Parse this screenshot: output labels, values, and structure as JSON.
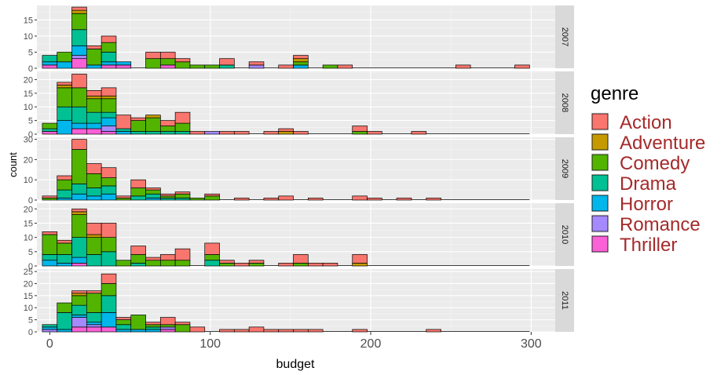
{
  "chart_data": {
    "type": "bar",
    "subtype": "stacked-histogram-faceted",
    "xlabel": "budget",
    "ylabel": "count",
    "xlim": [
      -8,
      315
    ],
    "x_ticks": [
      0,
      100,
      200,
      300
    ],
    "x_tick_labels": [
      "0",
      "100",
      "200",
      "300"
    ],
    "bin_width": 9.2,
    "bin_centers": [
      0,
      9.2,
      18.4,
      27.6,
      36.8,
      46,
      55.2,
      64.4,
      73.6,
      82.8,
      92,
      101.2,
      110.4,
      119.6,
      128.8,
      138,
      147.2,
      156.4,
      165.6,
      174.8,
      184,
      193.2,
      202.4,
      211.6,
      220.8,
      230,
      239.2,
      248.4,
      257.6,
      266.8,
      276,
      285.2,
      294.4
    ],
    "genres": [
      "Action",
      "Adventure",
      "Comedy",
      "Drama",
      "Horror",
      "Romance",
      "Thriller"
    ],
    "genre_colors": {
      "Action": "#F8766D",
      "Adventure": "#C49A00",
      "Comedy": "#53B400",
      "Drama": "#00C094",
      "Horror": "#00B6EB",
      "Romance": "#A58AFF",
      "Thriller": "#FB61D7"
    },
    "legend_title": "genre",
    "legend_label_color": "#A52A2A",
    "legend_position": "right",
    "grid": true,
    "facets": [
      {
        "label": "2007",
        "ylim": [
          0,
          19.5
        ],
        "y_ticks": [
          0,
          5,
          10,
          15
        ],
        "bins": [
          {
            "bin": 0,
            "Drama": 2,
            "Horror": 1,
            "Thriller": 1
          },
          {
            "bin": 1,
            "Comedy": 3,
            "Horror": 2
          },
          {
            "bin": 2,
            "Action": 1,
            "Adventure": 1,
            "Comedy": 5,
            "Drama": 5,
            "Horror": 3,
            "Romance": 1,
            "Thriller": 3
          },
          {
            "bin": 3,
            "Action": 1,
            "Comedy": 5,
            "Horror": 1
          },
          {
            "bin": 4,
            "Action": 2,
            "Comedy": 3,
            "Drama": 3,
            "Horror": 1,
            "Thriller": 1
          },
          {
            "bin": 5,
            "Horror": 1,
            "Thriller": 1
          },
          {
            "bin": 7,
            "Action": 2,
            "Comedy": 3
          },
          {
            "bin": 8,
            "Action": 2,
            "Comedy": 2,
            "Thriller": 1
          },
          {
            "bin": 9,
            "Action": 1,
            "Comedy": 2
          },
          {
            "bin": 10,
            "Comedy": 1
          },
          {
            "bin": 11,
            "Comedy": 1
          },
          {
            "bin": 12,
            "Action": 2,
            "Drama": 1
          },
          {
            "bin": 14,
            "Action": 1,
            "Romance": 1
          },
          {
            "bin": 16,
            "Action": 1
          },
          {
            "bin": 17,
            "Action": 1,
            "Adventure": 1,
            "Comedy": 1,
            "Horror": 1
          },
          {
            "bin": 19,
            "Comedy": 1
          },
          {
            "bin": 20,
            "Action": 1
          },
          {
            "bin": 28,
            "Action": 1
          },
          {
            "bin": 32,
            "Action": 1
          }
        ]
      },
      {
        "label": "2008",
        "ylim": [
          0,
          23
        ],
        "y_ticks": [
          0,
          5,
          10,
          15,
          20
        ],
        "bins": [
          {
            "bin": 0,
            "Comedy": 2,
            "Drama": 1,
            "Thriller": 1
          },
          {
            "bin": 1,
            "Action": 1,
            "Adventure": 1,
            "Comedy": 7,
            "Drama": 5,
            "Horror": 5
          },
          {
            "bin": 2,
            "Action": 5,
            "Comedy": 7,
            "Drama": 6,
            "Horror": 2,
            "Thriller": 2
          },
          {
            "bin": 3,
            "Action": 2,
            "Adventure": 1,
            "Comedy": 5,
            "Drama": 4,
            "Horror": 2,
            "Thriller": 2
          },
          {
            "bin": 4,
            "Action": 3,
            "Adventure": 1,
            "Comedy": 5,
            "Drama": 2,
            "Horror": 3,
            "Romance": 2,
            "Thriller": 1
          },
          {
            "bin": 5,
            "Action": 5,
            "Drama": 1,
            "Horror": 1
          },
          {
            "bin": 6,
            "Action": 1,
            "Comedy": 4,
            "Drama": 1
          },
          {
            "bin": 7,
            "Adventure": 1,
            "Comedy": 5,
            "Drama": 1
          },
          {
            "bin": 8,
            "Action": 2,
            "Comedy": 2,
            "Drama": 1
          },
          {
            "bin": 9,
            "Action": 4,
            "Comedy": 3,
            "Drama": 1
          },
          {
            "bin": 10,
            "Action": 1
          },
          {
            "bin": 11,
            "Romance": 1
          },
          {
            "bin": 12,
            "Action": 1
          },
          {
            "bin": 13,
            "Action": 1
          },
          {
            "bin": 15,
            "Action": 1
          },
          {
            "bin": 16,
            "Action": 1,
            "Adventure": 1
          },
          {
            "bin": 17,
            "Action": 1
          },
          {
            "bin": 21,
            "Action": 2,
            "Comedy": 1
          },
          {
            "bin": 22,
            "Action": 1
          },
          {
            "bin": 25,
            "Action": 1
          }
        ]
      },
      {
        "label": "2009",
        "ylim": [
          0,
          31
        ],
        "y_ticks": [
          0,
          10,
          20,
          30
        ],
        "bins": [
          {
            "bin": 0,
            "Action": 1,
            "Comedy": 1
          },
          {
            "bin": 1,
            "Action": 2,
            "Comedy": 5,
            "Drama": 4,
            "Horror": 1
          },
          {
            "bin": 2,
            "Action": 5,
            "Comedy": 17,
            "Drama": 5,
            "Horror": 3
          },
          {
            "bin": 3,
            "Action": 5,
            "Comedy": 7,
            "Drama": 4,
            "Horror": 2
          },
          {
            "bin": 4,
            "Action": 5,
            "Comedy": 4,
            "Drama": 4,
            "Horror": 3
          },
          {
            "bin": 5,
            "Action": 1,
            "Comedy": 1
          },
          {
            "bin": 6,
            "Action": 4,
            "Comedy": 4,
            "Drama": 2
          },
          {
            "bin": 7,
            "Action": 1,
            "Comedy": 2,
            "Drama": 2,
            "Horror": 1
          },
          {
            "bin": 8,
            "Action": 1,
            "Comedy": 1,
            "Drama": 1
          },
          {
            "bin": 9,
            "Action": 1,
            "Comedy": 2,
            "Drama": 1
          },
          {
            "bin": 10,
            "Comedy": 1
          },
          {
            "bin": 11,
            "Action": 1,
            "Comedy": 2
          },
          {
            "bin": 13,
            "Action": 1
          },
          {
            "bin": 15,
            "Action": 1
          },
          {
            "bin": 16,
            "Action": 2
          },
          {
            "bin": 18,
            "Action": 1
          },
          {
            "bin": 21,
            "Action": 2
          },
          {
            "bin": 22,
            "Action": 1
          },
          {
            "bin": 24,
            "Action": 1
          },
          {
            "bin": 26,
            "Action": 1
          }
        ]
      },
      {
        "label": "2010",
        "ylim": [
          0,
          22
        ],
        "y_ticks": [
          0,
          5,
          10,
          15,
          20
        ],
        "bins": [
          {
            "bin": 0,
            "Action": 1,
            "Comedy": 7,
            "Drama": 2,
            "Horror": 2
          },
          {
            "bin": 1,
            "Action": 1,
            "Comedy": 4,
            "Drama": 3,
            "Horror": 1
          },
          {
            "bin": 2,
            "Action": 1,
            "Adventure": 1,
            "Comedy": 8,
            "Drama": 7,
            "Horror": 2,
            "Thriller": 1
          },
          {
            "bin": 3,
            "Action": 4,
            "Adventure": 1,
            "Comedy": 6,
            "Drama": 4
          },
          {
            "bin": 4,
            "Action": 5,
            "Comedy": 5,
            "Drama": 5
          },
          {
            "bin": 5,
            "Comedy": 2
          },
          {
            "bin": 6,
            "Action": 3,
            "Comedy": 3,
            "Drama": 1
          },
          {
            "bin": 7,
            "Action": 1,
            "Comedy": 2
          },
          {
            "bin": 8,
            "Action": 2,
            "Comedy": 2
          },
          {
            "bin": 9,
            "Action": 4,
            "Comedy": 2
          },
          {
            "bin": 11,
            "Action": 4,
            "Comedy": 2,
            "Drama": 2
          },
          {
            "bin": 12,
            "Action": 1,
            "Comedy": 1
          },
          {
            "bin": 13,
            "Action": 1
          },
          {
            "bin": 14,
            "Action": 1,
            "Comedy": 1
          },
          {
            "bin": 16,
            "Action": 1
          },
          {
            "bin": 17,
            "Action": 3,
            "Comedy": 1
          },
          {
            "bin": 18,
            "Action": 1
          },
          {
            "bin": 19,
            "Action": 1
          },
          {
            "bin": 21,
            "Action": 3,
            "Adventure": 1
          }
        ]
      },
      {
        "label": "2011",
        "ylim": [
          0,
          26
        ],
        "y_ticks": [
          0,
          5,
          10,
          15,
          20,
          25
        ],
        "bins": [
          {
            "bin": 0,
            "Drama": 1,
            "Horror": 1,
            "Romance": 1
          },
          {
            "bin": 1,
            "Comedy": 4,
            "Drama": 7,
            "Horror": 1
          },
          {
            "bin": 2,
            "Action": 1,
            "Adventure": 1,
            "Comedy": 4,
            "Drama": 4,
            "Horror": 1,
            "Romance": 4,
            "Thriller": 2
          },
          {
            "bin": 3,
            "Action": 1,
            "Comedy": 8,
            "Drama": 4,
            "Horror": 1,
            "Romance": 1,
            "Thriller": 2
          },
          {
            "bin": 4,
            "Action": 4,
            "Comedy": 5,
            "Drama": 7,
            "Horror": 6,
            "Thriller": 2
          },
          {
            "bin": 5,
            "Action": 1,
            "Comedy": 2,
            "Drama": 2,
            "Horror": 1
          },
          {
            "bin": 6,
            "Comedy": 6,
            "Horror": 1
          },
          {
            "bin": 7,
            "Action": 1,
            "Comedy": 1,
            "Drama": 1,
            "Horror": 1
          },
          {
            "bin": 8,
            "Action": 3,
            "Comedy": 1,
            "Romance": 1,
            "Thriller": 1
          },
          {
            "bin": 9,
            "Action": 1,
            "Comedy": 3
          },
          {
            "bin": 10,
            "Action": 2
          },
          {
            "bin": 12,
            "Action": 1
          },
          {
            "bin": 13,
            "Action": 1
          },
          {
            "bin": 14,
            "Action": 2
          },
          {
            "bin": 15,
            "Action": 1
          },
          {
            "bin": 16,
            "Action": 1
          },
          {
            "bin": 17,
            "Action": 1
          },
          {
            "bin": 18,
            "Action": 1
          },
          {
            "bin": 21,
            "Action": 1
          },
          {
            "bin": 26,
            "Action": 1
          }
        ]
      }
    ]
  }
}
